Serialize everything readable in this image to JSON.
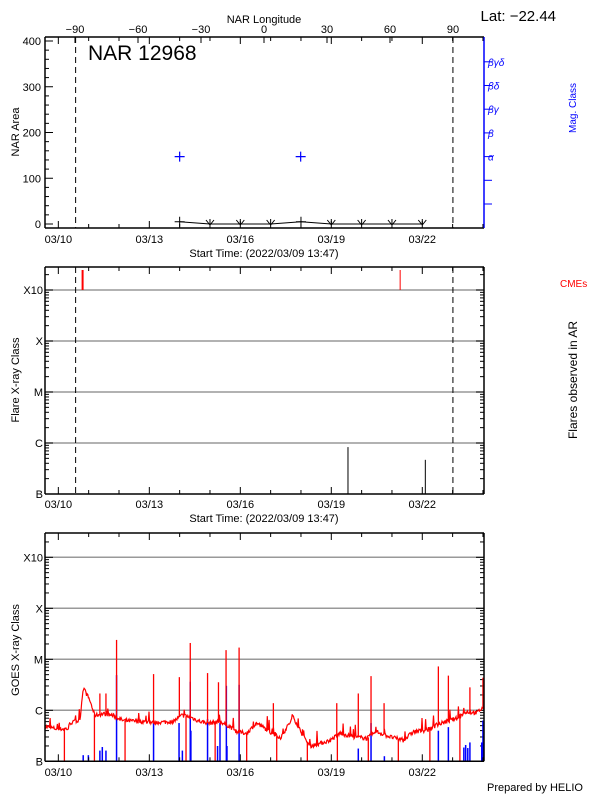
{
  "lat_label": "Lat: −22.44",
  "region_title": "NAR 12968",
  "footer": "Prepared by HELIO",
  "colors": {
    "axis": "#000000",
    "grid": "#999999",
    "mag": "#0000ff",
    "cme": "#ff0000",
    "goes_long": "#ff0000",
    "goes_short": "#0000ff"
  },
  "date_ticks": [
    {
      "day": 0,
      "label": "03/10"
    },
    {
      "day": 3,
      "label": "03/13"
    },
    {
      "day": 6,
      "label": "03/16"
    },
    {
      "day": 9,
      "label": "03/19"
    },
    {
      "day": 12,
      "label": "03/22"
    }
  ],
  "xlim_days_from_0310": [
    -0.43,
    14.04
  ],
  "limb_days": [
    0.57,
    13.01
  ],
  "start_time_label": "Start Time: (2022/03/09 13:47)",
  "chart_data": [
    {
      "type": "line",
      "title": "NAR 12968",
      "ylabel": "NAR Area",
      "ylim": [
        -9,
        409
      ],
      "yticks": [
        0,
        100,
        200,
        300,
        400
      ],
      "top_axis": {
        "label": "NAR Longitude",
        "ticks": [
          -90,
          -60,
          -30,
          0,
          30,
          60,
          90
        ]
      },
      "right_axis": {
        "label": "Mag. Class",
        "ticks": [
          "",
          "",
          "α",
          "β",
          "βγ",
          "βδ",
          "βγδ"
        ]
      },
      "area_series": {
        "days": [
          4,
          5,
          6,
          7,
          8,
          9,
          10,
          11,
          12
        ],
        "values": [
          5,
          0,
          0,
          0,
          5,
          0,
          0,
          0,
          0
        ]
      },
      "mag_class_points": [
        {
          "day": 4.0,
          "class_index": 2
        },
        {
          "day": 7.99,
          "class_index": 2
        }
      ]
    },
    {
      "type": "bar",
      "ylabel": "Flare X-ray Class",
      "right_label": "Flares observed in AR",
      "cme_label": "CMEs",
      "ylim_log_flux": [
        -7,
        -2.54
      ],
      "class_ticks": [
        {
          "label": "B",
          "log": -7
        },
        {
          "label": "C",
          "log": -6
        },
        {
          "label": "M",
          "log": -5
        },
        {
          "label": "X",
          "log": -4
        },
        {
          "label": "X10",
          "log": -3
        }
      ],
      "flares": [
        {
          "day": 9.55,
          "log_flux": -6.08
        },
        {
          "day": 12.1,
          "log_flux": -6.33
        }
      ],
      "cmes": [
        {
          "day": 0.8,
          "width": 2
        },
        {
          "day": 11.27,
          "width": 1
        }
      ]
    },
    {
      "type": "line",
      "ylabel": "GOES X-ray Class",
      "ylim_log_flux": [
        -7,
        -2.54
      ],
      "class_ticks": [
        {
          "label": "B",
          "log": -7
        },
        {
          "label": "C",
          "log": -6
        },
        {
          "label": "M",
          "log": -5
        },
        {
          "label": "X",
          "log": -4
        },
        {
          "label": "X10",
          "log": -3
        }
      ],
      "long_channel_baseline": [
        [
          -0.43,
          -6.32
        ],
        [
          0,
          -6.37
        ],
        [
          0.33,
          -6.36
        ],
        [
          0.38,
          -6.25
        ],
        [
          0.71,
          -6.2
        ],
        [
          0.82,
          -5.55
        ],
        [
          1.04,
          -5.81
        ],
        [
          1.2,
          -6.1
        ],
        [
          1.48,
          -6.07
        ],
        [
          1.8,
          -6.1
        ],
        [
          2.13,
          -6.2
        ],
        [
          2.7,
          -6.22
        ],
        [
          3.24,
          -6.24
        ],
        [
          3.8,
          -6.22
        ],
        [
          4.07,
          -6.1
        ],
        [
          4.34,
          -6.13
        ],
        [
          4.67,
          -6.22
        ],
        [
          5.0,
          -6.25
        ],
        [
          5.33,
          -6.22
        ],
        [
          5.66,
          -6.32
        ],
        [
          5.88,
          -6.42
        ],
        [
          6.21,
          -6.45
        ],
        [
          6.54,
          -6.25
        ],
        [
          6.87,
          -6.38
        ],
        [
          7.31,
          -6.55
        ],
        [
          7.75,
          -6.13
        ],
        [
          8.08,
          -6.52
        ],
        [
          8.3,
          -6.7
        ],
        [
          8.63,
          -6.65
        ],
        [
          8.96,
          -6.59
        ],
        [
          9.29,
          -6.45
        ],
        [
          9.73,
          -6.52
        ],
        [
          10.17,
          -6.55
        ],
        [
          10.5,
          -6.42
        ],
        [
          10.94,
          -6.52
        ],
        [
          11.38,
          -6.59
        ],
        [
          11.7,
          -6.42
        ],
        [
          12.14,
          -6.39
        ],
        [
          12.47,
          -6.29
        ],
        [
          12.8,
          -6.22
        ],
        [
          13.13,
          -6.16
        ],
        [
          13.46,
          -6.03
        ],
        [
          13.79,
          -6.05
        ],
        [
          14.04,
          -5.93
        ]
      ],
      "long_channel_spikes": [
        [
          1.37,
          -5.67
        ],
        [
          1.57,
          -5.67
        ],
        [
          1.92,
          -4.62
        ],
        [
          3.14,
          -5.29
        ],
        [
          3.99,
          -5.35
        ],
        [
          4.35,
          -4.68
        ],
        [
          4.92,
          -5.27
        ],
        [
          5.28,
          -5.45
        ],
        [
          5.53,
          -4.82
        ],
        [
          5.96,
          -4.77
        ],
        [
          7.09,
          -5.86
        ],
        [
          9.18,
          -5.86
        ],
        [
          9.89,
          -5.67
        ],
        [
          10.31,
          -5.33
        ],
        [
          10.74,
          -5.86
        ],
        [
          12.53,
          -5.14
        ],
        [
          12.86,
          -5.32
        ],
        [
          13.57,
          -5.55
        ],
        [
          14.0,
          -5.36
        ]
      ],
      "long_channel_dropouts": [
        0.2,
        1.19,
        2.2,
        4.21,
        5.17,
        6.21,
        7.2,
        8.21,
        9.2,
        10.22,
        11.21,
        12.25,
        13.24
      ],
      "short_channel_bars": [
        [
          0.82,
          -6.88
        ],
        [
          0.99,
          -6.88
        ],
        [
          1.37,
          -6.79
        ],
        [
          1.45,
          -6.72
        ],
        [
          1.57,
          -6.79
        ],
        [
          1.92,
          -5.31
        ],
        [
          3.14,
          -6.25
        ],
        [
          3.98,
          -6.25
        ],
        [
          4.09,
          -6.79
        ],
        [
          4.35,
          -5.44
        ],
        [
          4.37,
          -6.4
        ],
        [
          4.92,
          -6.17
        ],
        [
          5.25,
          -6.7
        ],
        [
          5.33,
          -6.25
        ],
        [
          5.54,
          -5.52
        ],
        [
          5.56,
          -6.7
        ],
        [
          5.96,
          -5.5
        ],
        [
          9.89,
          -6.75
        ],
        [
          10.31,
          -6.25
        ],
        [
          10.75,
          -6.9
        ],
        [
          12.53,
          -6.4
        ],
        [
          12.86,
          -6.33
        ],
        [
          13.37,
          -6.73
        ],
        [
          13.43,
          -6.68
        ],
        [
          13.5,
          -6.74
        ],
        [
          13.57,
          -6.63
        ],
        [
          13.96,
          -6.63
        ],
        [
          14.0,
          -6.2
        ]
      ]
    }
  ]
}
